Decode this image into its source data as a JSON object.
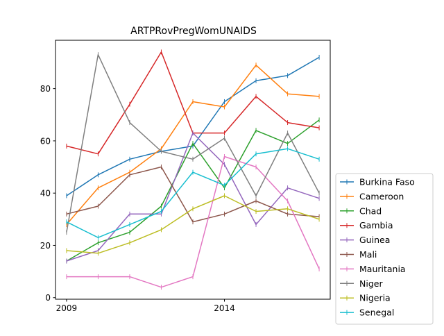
{
  "chart_data": {
    "type": "line",
    "title": "ARTPRovPregWomUNAIDS",
    "xlabel": "",
    "ylabel": "",
    "x": [
      2009,
      2010,
      2011,
      2012,
      2013,
      2014,
      2015,
      2016,
      2017
    ],
    "xlim": [
      2008.65,
      2017.35
    ],
    "ylim": [
      -0.6,
      98.5
    ],
    "xticks": [
      2009,
      2014
    ],
    "yticks": [
      0,
      20,
      40,
      60,
      80
    ],
    "grid": false,
    "legend_position": "lower-right outside",
    "series": [
      {
        "name": "Burkina Faso",
        "color": "#1f77b4",
        "values": [
          39,
          47,
          53,
          56,
          58,
          75,
          83,
          85,
          92
        ]
      },
      {
        "name": "Cameroon",
        "color": "#ff7f0e",
        "values": [
          28,
          42,
          48,
          57,
          75,
          73,
          89,
          78,
          77
        ]
      },
      {
        "name": "Chad",
        "color": "#2ca02c",
        "values": [
          14,
          21,
          25,
          35,
          59,
          42,
          64,
          59,
          68
        ]
      },
      {
        "name": "Gambia",
        "color": "#d62728",
        "values": [
          58,
          55,
          74,
          94,
          63,
          63,
          77,
          67,
          65
        ]
      },
      {
        "name": "Guinea",
        "color": "#9467bd",
        "values": [
          14,
          18,
          32,
          32,
          63,
          51,
          28,
          42,
          38
        ]
      },
      {
        "name": "Mali",
        "color": "#8c564b",
        "values": [
          32,
          35,
          47,
          50,
          29,
          32,
          37,
          32,
          31
        ]
      },
      {
        "name": "Mauritania",
        "color": "#e377c2",
        "values": [
          8,
          8,
          8,
          4,
          8,
          54,
          50,
          37,
          11
        ]
      },
      {
        "name": "Niger",
        "color": "#7f7f7f",
        "values": [
          25,
          93,
          67,
          56,
          53,
          61,
          39,
          63,
          40
        ]
      },
      {
        "name": "Nigeria",
        "color": "#bcbd22",
        "values": [
          18,
          17,
          21,
          26,
          34,
          39,
          33,
          34,
          30
        ]
      },
      {
        "name": "Senegal",
        "color": "#17becf",
        "values": [
          29,
          23,
          28,
          33,
          48,
          43,
          55,
          57,
          53
        ]
      }
    ]
  }
}
